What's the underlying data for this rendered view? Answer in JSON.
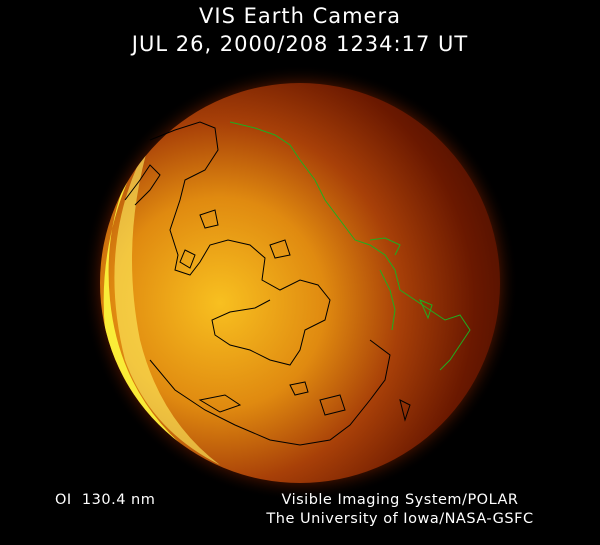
{
  "header": {
    "title": "VIS Earth Camera",
    "timestamp": "JUL 26, 2000/208 1234:17 UT"
  },
  "footer": {
    "band": "OI  130.4 nm",
    "credit_line1": "Visible Imaging System/POLAR",
    "credit_line2": "The University of Iowa/NASA-GSFC"
  },
  "colors": {
    "background": "#000000",
    "dayside_bright": "#ffff40",
    "mid": "#e08000",
    "nightside": "#6a1500",
    "coastline_day": "#000000",
    "coastline_night": "#1fae1f"
  }
}
